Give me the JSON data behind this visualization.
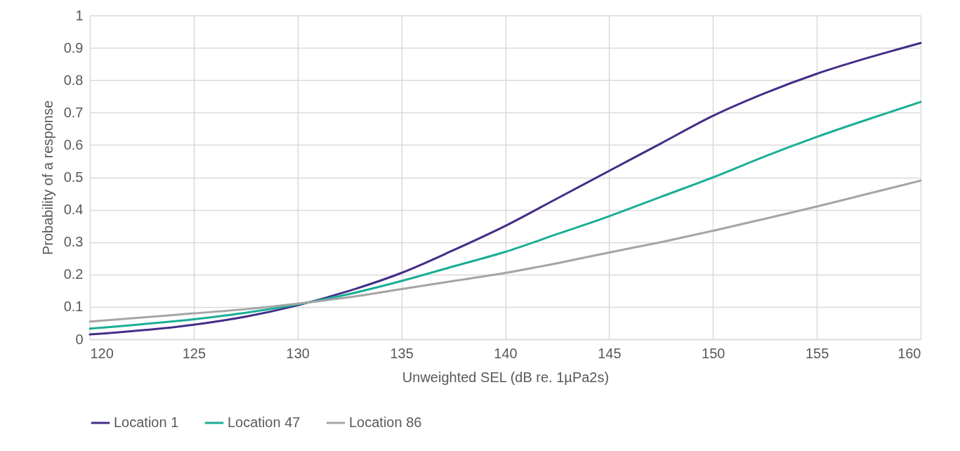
{
  "chart_data": {
    "type": "line",
    "xlabel": "Unweighted SEL (dB re. 1µPa2s)",
    "ylabel": "Probability of a response",
    "x": [
      120,
      125,
      127.5,
      130,
      132.5,
      135,
      137.5,
      140,
      142.5,
      145,
      147.5,
      150,
      152.5,
      155,
      157.5,
      160
    ],
    "series": [
      {
        "name": "Location 1",
        "color": "#442d87",
        "values": [
          0.015,
          0.045,
          0.07,
          0.105,
          0.15,
          0.205,
          0.275,
          0.35,
          0.435,
          0.52,
          0.605,
          0.69,
          0.76,
          0.82,
          0.87,
          0.915
        ]
      },
      {
        "name": "Location 47",
        "color": "#1aae96",
        "values": [
          0.033,
          0.062,
          0.082,
          0.108,
          0.14,
          0.18,
          0.225,
          0.27,
          0.325,
          0.38,
          0.44,
          0.5,
          0.565,
          0.625,
          0.68,
          0.733
        ]
      },
      {
        "name": "Location 86",
        "color": "#a5a5a5",
        "values": [
          0.055,
          0.08,
          0.093,
          0.11,
          0.13,
          0.155,
          0.18,
          0.205,
          0.235,
          0.268,
          0.3,
          0.335,
          0.372,
          0.41,
          0.45,
          0.49
        ]
      }
    ],
    "xlim": [
      120,
      160
    ],
    "xticks": [
      120,
      125,
      130,
      135,
      140,
      145,
      150,
      155,
      160
    ],
    "ylim": [
      0,
      1
    ],
    "yticks": [
      0,
      0.1,
      0.2,
      0.3,
      0.4,
      0.5,
      0.6,
      0.7,
      0.8,
      0.9,
      1
    ],
    "grid": true,
    "legend": "bottom"
  }
}
